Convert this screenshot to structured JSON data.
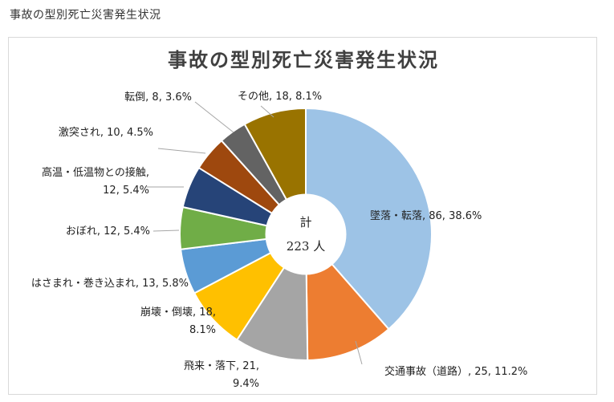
{
  "page": {
    "caption": "事故の型別死亡災害発生状況"
  },
  "chart_data": {
    "type": "pie",
    "title": "事故の型別死亡災害発生状況",
    "center_label": [
      "計",
      "223 人"
    ],
    "total": 223,
    "slices": [
      {
        "category": "墜落・転落",
        "value": 86,
        "percent": 38.6,
        "color": "#9dc3e6",
        "label": [
          "墜落・転落, 86, 38.6%"
        ]
      },
      {
        "category": "交通事故（道路）",
        "value": 25,
        "percent": 11.2,
        "color": "#ed7d31",
        "label": [
          "交通事故（道路）, 25, 11.2%"
        ]
      },
      {
        "category": "飛来・落下",
        "value": 21,
        "percent": 9.4,
        "color": "#a5a5a5",
        "label": [
          "飛来・落下, 21,",
          "9.4%"
        ]
      },
      {
        "category": "崩壊・倒壊",
        "value": 18,
        "percent": 8.1,
        "color": "#ffc000",
        "label": [
          "崩壊・倒壊, 18,",
          "8.1%"
        ]
      },
      {
        "category": "はさまれ・巻き込まれ",
        "value": 13,
        "percent": 5.8,
        "color": "#5b9bd5",
        "label": [
          "はさまれ・巻き込まれ, 13, 5.8%"
        ]
      },
      {
        "category": "おぼれ",
        "value": 12,
        "percent": 5.4,
        "color": "#70ad47",
        "label": [
          "おぼれ, 12, 5.4%"
        ]
      },
      {
        "category": "高温・低温物との接触",
        "value": 12,
        "percent": 5.4,
        "color": "#264478",
        "label": [
          "高温・低温物との接触,",
          "12, 5.4%"
        ]
      },
      {
        "category": "激突され",
        "value": 10,
        "percent": 4.5,
        "color": "#9e480e",
        "label": [
          "激突され, 10, 4.5%"
        ]
      },
      {
        "category": "転倒",
        "value": 8,
        "percent": 3.6,
        "color": "#636363",
        "label": [
          "転倒, 8, 3.6%"
        ]
      },
      {
        "category": "その他",
        "value": 18,
        "percent": 8.1,
        "color": "#997300",
        "label": [
          "その他, 18, 8.1%"
        ]
      }
    ]
  }
}
